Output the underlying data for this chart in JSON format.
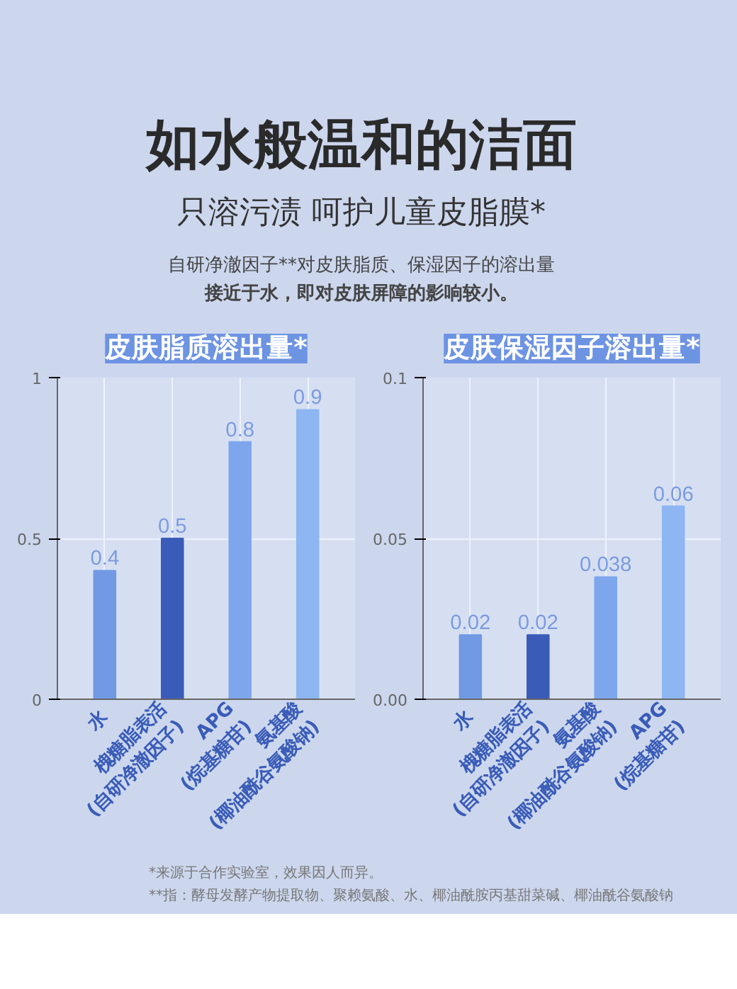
{
  "chart_data": [
    {
      "type": "other",
      "title": "如水般温和的洁面",
      "subtitle": "只溶污渍 呵护儿童皮脂膜*",
      "annotations": [
        "自研净澈因子**对皮肤脂质、保湿因子的溶出量",
        "接近于水，即对皮肤屏障的影响较小。"
      ]
    },
    {
      "type": "bar",
      "title": "皮肤脂质溶出量*",
      "categories": [
        "水",
        "槐糖脂表活\n(自研净澈因子)",
        "APG\n(烷基糖苷)",
        "氨基酸\n(椰油酰谷氨酸钠)"
      ],
      "values": [
        0.4,
        0.5,
        0.8,
        0.9
      ],
      "colors": [
        "#7199e4",
        "#3a5cb8",
        "#7ea6ec",
        "#8db6f2"
      ],
      "ylim": [
        0,
        1
      ],
      "yticks": [
        0,
        {
          "value": 0.5,
          "label": "0.5"
        },
        1
      ],
      "data_labels": true,
      "grid": true
    },
    {
      "type": "bar",
      "title": "皮肤保湿因子溶出量*",
      "categories": [
        "水",
        "槐糖脂表活\n(自研净澈因子)",
        "氨基酸\n(椰油酰谷氨酸钠)",
        "APG\n(烷基糖苷)"
      ],
      "values": [
        0.02,
        0.02,
        0.038,
        0.06
      ],
      "colors": [
        "#7199e4",
        "#3a5cb8",
        "#7ea6ec",
        "#8db6f2"
      ],
      "ylim": [
        0,
        0.1
      ],
      "yticks": [
        {
          "value": 0,
          "label": "0.00"
        },
        0.05,
        0.1
      ],
      "data_labels": true,
      "grid": true
    },
    {
      "type": "other",
      "annotations": [
        "*来源于合作实验室，效果因人而异。",
        "**指：酵母发酵产物提取物、聚赖氨酸、水、椰油酰胺丙基甜菜碱、椰油酰谷氨酸钠"
      ]
    }
  ]
}
